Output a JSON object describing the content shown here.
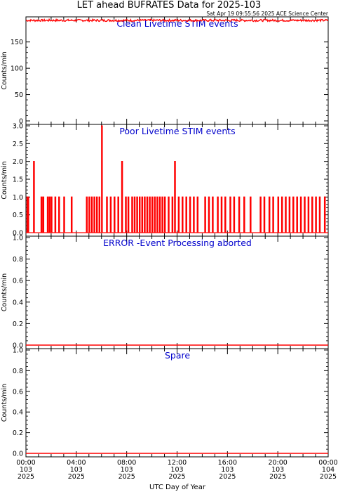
{
  "header": {
    "title": "LET ahead BUFRATES Data for 2025-103",
    "timestamp": "Sat Apr 19 09:55:56 2025 ACE Science Center"
  },
  "xaxis": {
    "label": "UTC Day of Year",
    "ticks": [
      {
        "time": "00:00",
        "doy": "103",
        "year": "2025"
      },
      {
        "time": "04:00",
        "doy": "103",
        "year": "2025"
      },
      {
        "time": "08:00",
        "doy": "103",
        "year": "2025"
      },
      {
        "time": "12:00",
        "doy": "103",
        "year": "2025"
      },
      {
        "time": "16:00",
        "doy": "103",
        "year": "2025"
      },
      {
        "time": "20:00",
        "doy": "103",
        "year": "2025"
      },
      {
        "time": "00:00",
        "doy": "104",
        "year": "2025"
      }
    ]
  },
  "colors": {
    "data": "#ff0000",
    "title": "#0000cc",
    "axis": "#000000"
  },
  "chart_data": [
    {
      "type": "line",
      "title": "Clean Livetime STIM events",
      "ylabel": "Counts/min",
      "ylim": [
        0,
        195
      ],
      "yticks": [
        0,
        50,
        100,
        150
      ],
      "ytick_labels": [
        "0",
        "50",
        "100",
        "150"
      ],
      "xlim_hours": [
        0,
        24
      ],
      "series": [
        {
          "noise": true,
          "base": 191,
          "amp": 2,
          "x": [
            0,
            0.1,
            0.2,
            0.3,
            0.4,
            0.5,
            0.6,
            0.7,
            0.8,
            24
          ],
          "y": [
            191,
            191,
            191,
            191,
            191,
            191,
            191,
            191,
            191,
            191
          ]
        }
      ]
    },
    {
      "type": "line",
      "title": "Poor Livetime STIM events",
      "ylabel": "Counts/min",
      "ylim": [
        0,
        3
      ],
      "yticks": [
        0,
        0.5,
        1,
        1.5,
        2,
        2.5,
        3
      ],
      "ytick_labels": [
        "0.0",
        "0.5",
        "1.0",
        "1.5",
        "2.0",
        "2.5",
        "3.0"
      ],
      "xlim_hours": [
        0,
        24
      ],
      "series": [
        {
          "spikes": [
            [
              0.08,
              1
            ],
            [
              0.15,
              1
            ],
            [
              0.6,
              2
            ],
            [
              1.2,
              1
            ],
            [
              1.35,
              1
            ],
            [
              1.7,
              1
            ],
            [
              1.85,
              1
            ],
            [
              2.0,
              1
            ],
            [
              2.3,
              1
            ],
            [
              2.6,
              1
            ],
            [
              3.0,
              1
            ],
            [
              3.6,
              1
            ],
            [
              4.8,
              1
            ],
            [
              5.0,
              1
            ],
            [
              5.2,
              1
            ],
            [
              5.4,
              1
            ],
            [
              5.6,
              1
            ],
            [
              5.8,
              1
            ],
            [
              6.0,
              3
            ],
            [
              6.4,
              1
            ],
            [
              6.7,
              1
            ],
            [
              7.0,
              1
            ],
            [
              7.3,
              1
            ],
            [
              7.6,
              2
            ],
            [
              7.9,
              1
            ],
            [
              8.1,
              1
            ],
            [
              8.4,
              1
            ],
            [
              8.6,
              1
            ],
            [
              8.8,
              1
            ],
            [
              9.0,
              1
            ],
            [
              9.2,
              1
            ],
            [
              9.4,
              1
            ],
            [
              9.6,
              1
            ],
            [
              9.8,
              1
            ],
            [
              10.0,
              1
            ],
            [
              10.2,
              1
            ],
            [
              10.4,
              1
            ],
            [
              10.6,
              1
            ],
            [
              10.8,
              1
            ],
            [
              11.0,
              1
            ],
            [
              11.3,
              1
            ],
            [
              11.6,
              1
            ],
            [
              11.8,
              2
            ],
            [
              12.1,
              1
            ],
            [
              12.4,
              1
            ],
            [
              12.7,
              1
            ],
            [
              13.0,
              1
            ],
            [
              13.3,
              1
            ],
            [
              13.6,
              1
            ],
            [
              14.2,
              1
            ],
            [
              14.5,
              1
            ],
            [
              14.8,
              1
            ],
            [
              15.2,
              1
            ],
            [
              15.5,
              1
            ],
            [
              15.8,
              1
            ],
            [
              16.2,
              1
            ],
            [
              16.5,
              1
            ],
            [
              16.9,
              1
            ],
            [
              17.3,
              1
            ],
            [
              17.8,
              1
            ],
            [
              18.6,
              1
            ],
            [
              18.9,
              1
            ],
            [
              19.3,
              1
            ],
            [
              19.6,
              1
            ],
            [
              20.0,
              1
            ],
            [
              20.3,
              1
            ],
            [
              20.6,
              1
            ],
            [
              20.9,
              1
            ],
            [
              21.2,
              1
            ],
            [
              21.5,
              1
            ],
            [
              21.8,
              1
            ],
            [
              22.1,
              1
            ],
            [
              22.4,
              1
            ],
            [
              22.7,
              1
            ],
            [
              23.0,
              1
            ],
            [
              23.3,
              1
            ],
            [
              23.7,
              1
            ]
          ]
        }
      ]
    },
    {
      "type": "line",
      "title": "ERROR -Event Processing aborted",
      "ylabel": "Counts/min",
      "ylim": [
        0,
        1
      ],
      "yticks": [
        0,
        0.2,
        0.4,
        0.6,
        0.8,
        1.0
      ],
      "ytick_labels": [
        "0.0",
        "0.2",
        "0.4",
        "0.6",
        "0.8",
        "1.0"
      ],
      "xlim_hours": [
        0,
        24
      ],
      "series": [
        {
          "x": [
            0,
            24
          ],
          "y": [
            0,
            0
          ]
        }
      ]
    },
    {
      "type": "line",
      "title": "Spare",
      "ylabel": "Counts/min",
      "ylim": [
        0,
        1
      ],
      "yticks": [
        0,
        0.2,
        0.4,
        0.6,
        0.8,
        1.0
      ],
      "ytick_labels": [
        "0.0",
        "0.2",
        "0.4",
        "0.6",
        "0.8",
        "1.0"
      ],
      "xlim_hours": [
        0,
        24
      ],
      "series": [
        {
          "x": [
            0,
            24
          ],
          "y": [
            0,
            0
          ]
        }
      ]
    }
  ]
}
